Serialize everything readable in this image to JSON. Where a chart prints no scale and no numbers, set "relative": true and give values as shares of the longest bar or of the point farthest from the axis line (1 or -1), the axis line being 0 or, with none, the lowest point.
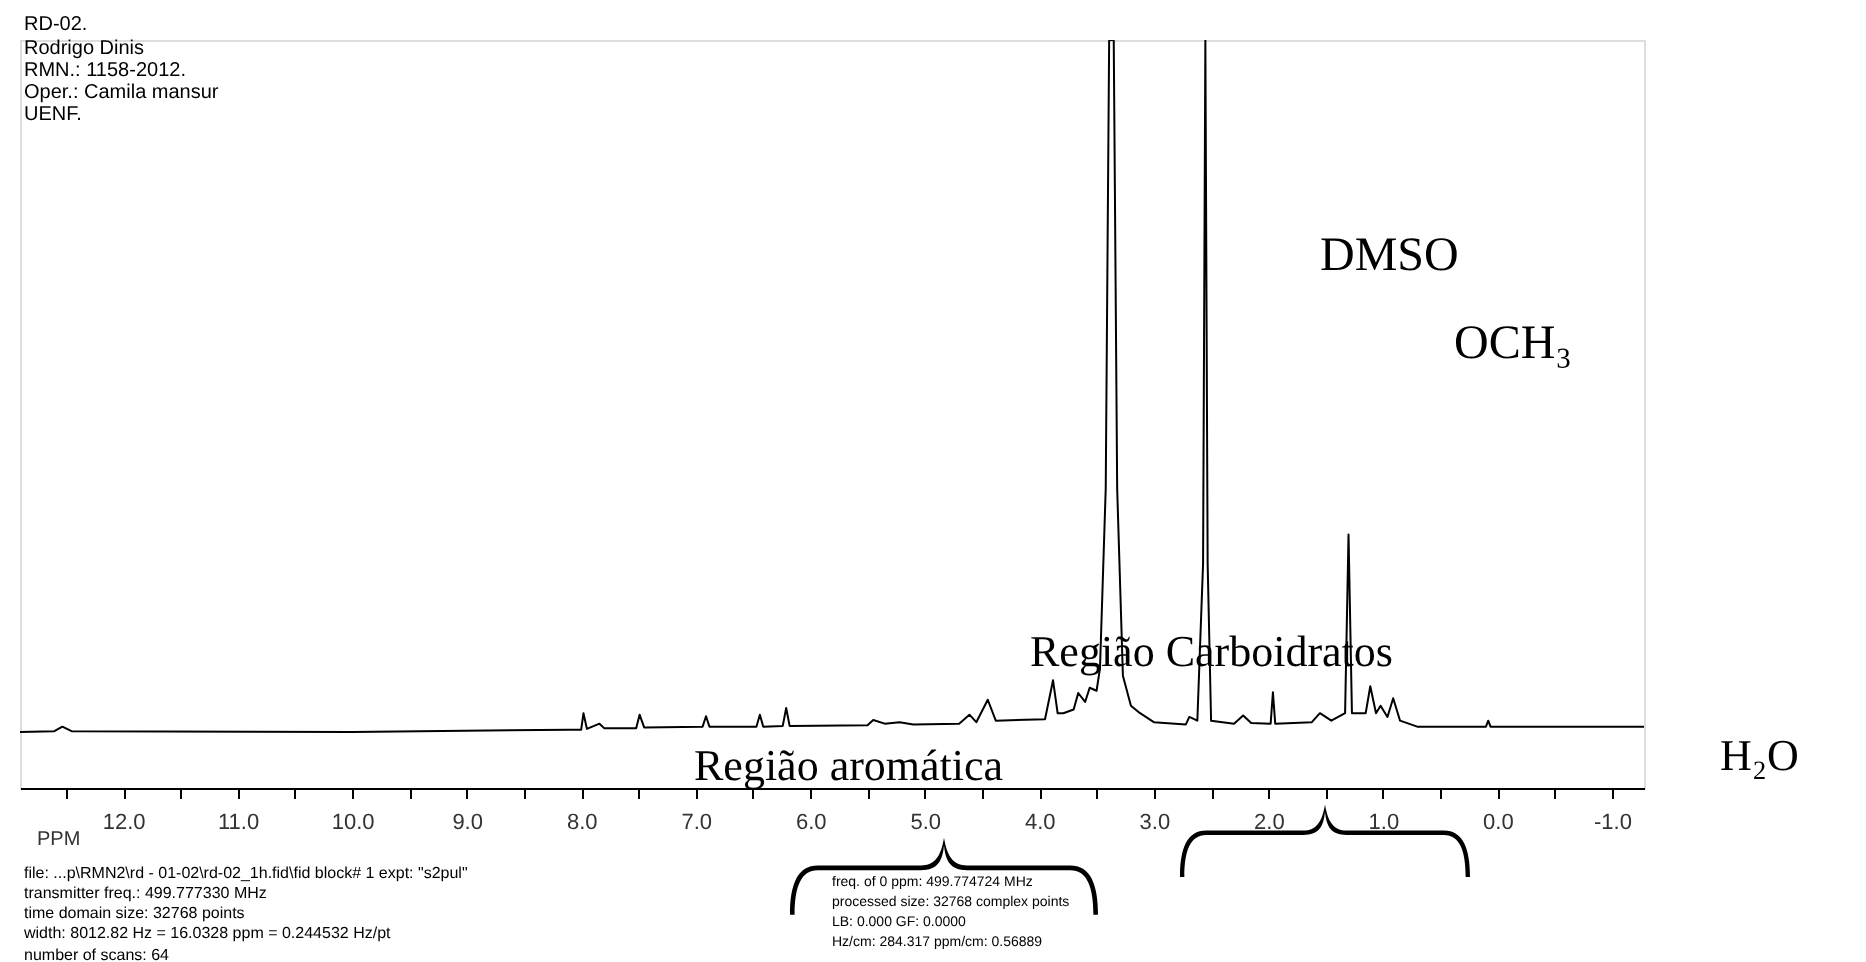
{
  "chart_data": {
    "type": "line",
    "relative": true,
    "xlabel": "PPM",
    "xlim": [
      12.9,
      -1.28
    ],
    "xticks": [
      {
        "value": 12.5,
        "label": null
      },
      {
        "value": 12,
        "label": "12.0"
      },
      {
        "value": 11.5,
        "label": null
      },
      {
        "value": 11,
        "label": "11.0"
      },
      {
        "value": 10.5,
        "label": null
      },
      {
        "value": 10,
        "label": "10.0"
      },
      {
        "value": 9.5,
        "label": null
      },
      {
        "value": 9,
        "label": "9.0"
      },
      {
        "value": 8.5,
        "label": null
      },
      {
        "value": 8,
        "label": "8.0"
      },
      {
        "value": 7.5,
        "label": null
      },
      {
        "value": 7,
        "label": "7.0"
      },
      {
        "value": 6.5,
        "label": null
      },
      {
        "value": 6,
        "label": "6.0"
      },
      {
        "value": 5.5,
        "label": null
      },
      {
        "value": 5,
        "label": "5.0"
      },
      {
        "value": 4.5,
        "label": null
      },
      {
        "value": 4,
        "label": "4.0"
      },
      {
        "value": 3.5,
        "label": null
      },
      {
        "value": 3,
        "label": "3.0"
      },
      {
        "value": 2.5,
        "label": null
      },
      {
        "value": 2,
        "label": "2.0"
      },
      {
        "value": 1.5,
        "label": null
      },
      {
        "value": 1,
        "label": "1.0"
      },
      {
        "value": 0.5,
        "label": null
      },
      {
        "value": 0,
        "label": "0.0"
      },
      {
        "value": -0.5,
        "label": null
      },
      {
        "value": -1,
        "label": "-1.0"
      }
    ],
    "tick_labels": "x",
    "grid": false,
    "marker": "none",
    "line_style": "solid",
    "series": [
      {
        "color": "#000000",
        "x": [
          12.9,
          12.6,
          12.53,
          12.45,
          10.0,
          8.1,
          8.0,
          7.98,
          7.95,
          7.84,
          7.8,
          7.52,
          7.49,
          7.45,
          6.94,
          6.91,
          6.88,
          6.47,
          6.44,
          6.41,
          6.24,
          6.21,
          6.18,
          5.5,
          5.45,
          5.35,
          5.22,
          5.1,
          4.7,
          4.61,
          4.55,
          4.45,
          4.38,
          3.95,
          3.88,
          3.84,
          3.79,
          3.7,
          3.66,
          3.6,
          3.56,
          3.5,
          3.47,
          3.42,
          3.39,
          3.35,
          3.32,
          3.27,
          3.2,
          3.12,
          3.0,
          2.72,
          2.69,
          2.62,
          2.57,
          2.55,
          2.53,
          2.5,
          2.3,
          2.22,
          2.15,
          1.98,
          1.96,
          1.94,
          1.62,
          1.55,
          1.45,
          1.33,
          1.3,
          1.27,
          1.15,
          1.11,
          1.06,
          1.02,
          0.96,
          0.91,
          0.85,
          0.7,
          0.1,
          0.08,
          0.06,
          -1.28
        ],
        "values": [
          0.075,
          0.076,
          0.082,
          0.076,
          0.075,
          0.078,
          0.078,
          0.1,
          0.079,
          0.086,
          0.08,
          0.08,
          0.098,
          0.081,
          0.082,
          0.096,
          0.082,
          0.082,
          0.098,
          0.082,
          0.083,
          0.107,
          0.083,
          0.084,
          0.091,
          0.086,
          0.088,
          0.085,
          0.086,
          0.098,
          0.088,
          0.118,
          0.09,
          0.092,
          0.144,
          0.1,
          0.1,
          0.105,
          0.127,
          0.115,
          0.134,
          0.13,
          0.16,
          0.4,
          1,
          1,
          0.4,
          0.15,
          0.11,
          0.1,
          0.088,
          0.085,
          0.095,
          0.09,
          0.3,
          1,
          0.3,
          0.09,
          0.086,
          0.097,
          0.087,
          0.086,
          0.128,
          0.086,
          0.088,
          0.1,
          0.09,
          0.1,
          0.339,
          0.1,
          0.1,
          0.136,
          0.1,
          0.11,
          0.095,
          0.12,
          0.09,
          0.082,
          0.082,
          0.09,
          0.082,
          0.082
        ]
      }
    ],
    "annotations": [
      "RD-02.",
      "Rodrigo Dinis",
      "RMN.: 1158-2012.",
      "Oper.: Camila mansur",
      "UENF.",
      "file: ...p\\RMN2\\rd - 01-02\\rd-02_1h.fid\\fid  block# 1  expt: \"s2pul\"",
      "transmitter freq.: 499.777330 MHz",
      "time domain size: 32768 points",
      "width: 8012.82 Hz = 16.0328 ppm = 0.244532 Hz/pt",
      "number of scans: 64",
      "freq. of 0 ppm: 499.774724 MHz",
      "processed size: 32768 complex points",
      "LB: 0.000    GF: 0.0000",
      "Hz/cm: 284.317    ppm/cm: 0.56889",
      "DMSO",
      "OCH₃",
      "H₂O",
      "Região Carboidratos",
      "Região aromática"
    ]
  }
}
